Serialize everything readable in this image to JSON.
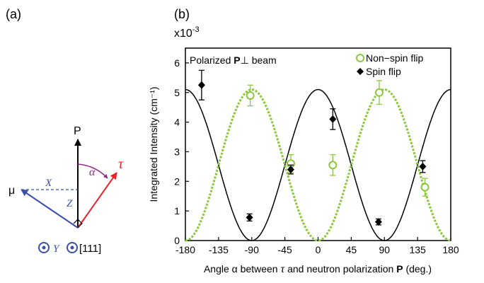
{
  "panel_a": {
    "label": "(a)",
    "vector_P": "P",
    "vector_tau": "τ",
    "vector_mu": "μ",
    "angle_alpha": "α",
    "axis_x": "X",
    "axis_z": "Z",
    "axis_y": "Y",
    "direction_111": "[111]",
    "colors": {
      "mu": "#3a4fa8",
      "tau": "#e8242a",
      "alpha": "#8b2a87",
      "black": "#000000"
    }
  },
  "chart_data": {
    "panel_label": "(b)",
    "type": "scatter",
    "title": "",
    "annotation": {
      "prefix": "Polarized ",
      "bold": "P",
      "suffix": "⊥ beam"
    },
    "scale_label": {
      "base": "x10",
      "exp": "-3"
    },
    "ylabel": "Integrated Intensity (cm⁻¹)",
    "xlabel": {
      "a": "Angle ",
      "b": "α",
      "c": " between ",
      "d": "τ",
      "e": " and neutron polarization ",
      "f": "P",
      "g": " (deg.)"
    },
    "xlim": [
      -180,
      180
    ],
    "ylim": [
      0,
      6.5
    ],
    "x_ticks": [
      "-180",
      "-135",
      "-90",
      "-45",
      "0",
      "45",
      "90",
      "135",
      "180"
    ],
    "y_ticks": [
      "0",
      "1",
      "2",
      "3",
      "4",
      "5",
      "6"
    ],
    "legend_position": "top-right",
    "series": [
      {
        "name": "Non−spin flip",
        "marker": "open-circle",
        "color": "#8cc63f",
        "points": [
          {
            "x": -92,
            "y": 4.9,
            "err": 0.35
          },
          {
            "x": -37,
            "y": 2.6,
            "err": 0.3
          },
          {
            "x": 20,
            "y": 2.55,
            "err": 0.35
          },
          {
            "x": 83,
            "y": 5.0,
            "err": 0.4
          },
          {
            "x": 145,
            "y": 1.8,
            "err": 0.3
          }
        ]
      },
      {
        "name": "Spin flip",
        "marker": "filled-diamond",
        "color": "#000000",
        "points": [
          {
            "x": -158,
            "y": 5.25,
            "err": 0.5
          },
          {
            "x": -93,
            "y": 0.78,
            "err": 0.12
          },
          {
            "x": -37,
            "y": 2.4,
            "err": 0.15
          },
          {
            "x": 20,
            "y": 4.1,
            "err": 0.35
          },
          {
            "x": 82,
            "y": 0.63,
            "err": 0.1
          },
          {
            "x": 142,
            "y": 2.5,
            "err": 0.2
          }
        ]
      }
    ],
    "curves": [
      {
        "series": "Spin flip",
        "style": "solid",
        "color": "#000000",
        "function": "cos2",
        "amplitude": 5.1,
        "offset": 0,
        "min_x": -90
      },
      {
        "series": "Non−spin flip",
        "style": "dotted",
        "color": "#8cc63f",
        "function": "sin2",
        "amplitude": 5.1,
        "offset": 0,
        "max_x": -90
      }
    ]
  }
}
